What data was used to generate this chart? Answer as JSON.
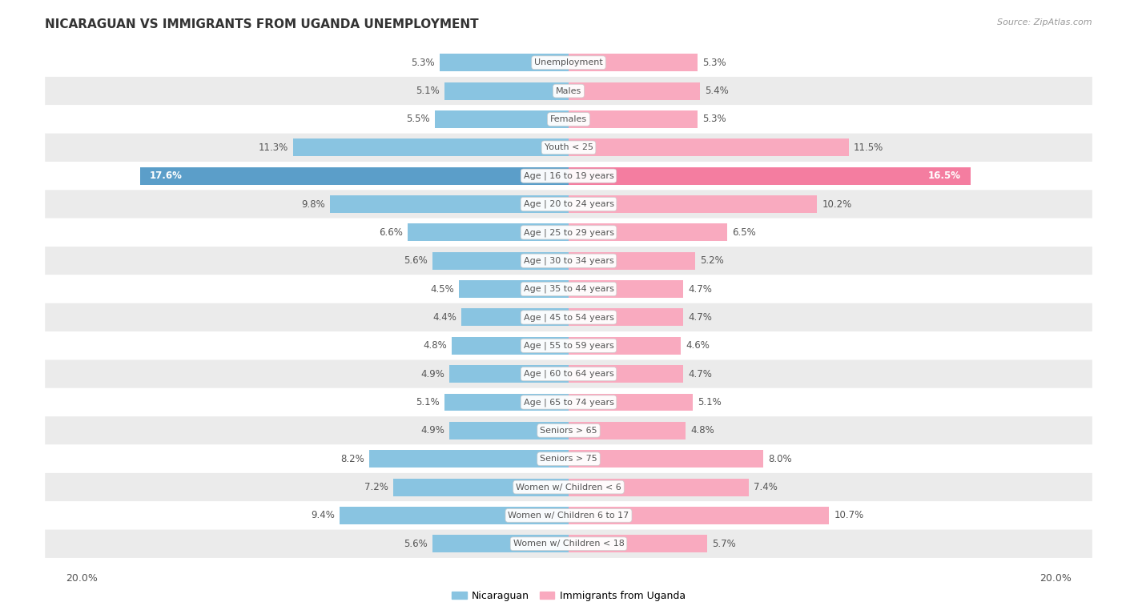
{
  "title": "NICARAGUAN VS IMMIGRANTS FROM UGANDA UNEMPLOYMENT",
  "source": "Source: ZipAtlas.com",
  "categories": [
    "Unemployment",
    "Males",
    "Females",
    "Youth < 25",
    "Age | 16 to 19 years",
    "Age | 20 to 24 years",
    "Age | 25 to 29 years",
    "Age | 30 to 34 years",
    "Age | 35 to 44 years",
    "Age | 45 to 54 years",
    "Age | 55 to 59 years",
    "Age | 60 to 64 years",
    "Age | 65 to 74 years",
    "Seniors > 65",
    "Seniors > 75",
    "Women w/ Children < 6",
    "Women w/ Children 6 to 17",
    "Women w/ Children < 18"
  ],
  "nicaraguan": [
    5.3,
    5.1,
    5.5,
    11.3,
    17.6,
    9.8,
    6.6,
    5.6,
    4.5,
    4.4,
    4.8,
    4.9,
    5.1,
    4.9,
    8.2,
    7.2,
    9.4,
    5.6
  ],
  "uganda": [
    5.3,
    5.4,
    5.3,
    11.5,
    16.5,
    10.2,
    6.5,
    5.2,
    4.7,
    4.7,
    4.6,
    4.7,
    5.1,
    4.8,
    8.0,
    7.4,
    10.7,
    5.7
  ],
  "max_val": 20.0,
  "blue_color": "#89C4E1",
  "pink_color_light": "#F9AABF",
  "pink_color_dark": "#F47DA0",
  "blue_color_dark": "#5B9EC9",
  "bg_color": "#FFFFFF",
  "row_bg_light": "#FFFFFF",
  "row_bg_gray": "#EBEBEB",
  "label_text_color": "#555555",
  "title_color": "#333333",
  "source_color": "#999999"
}
